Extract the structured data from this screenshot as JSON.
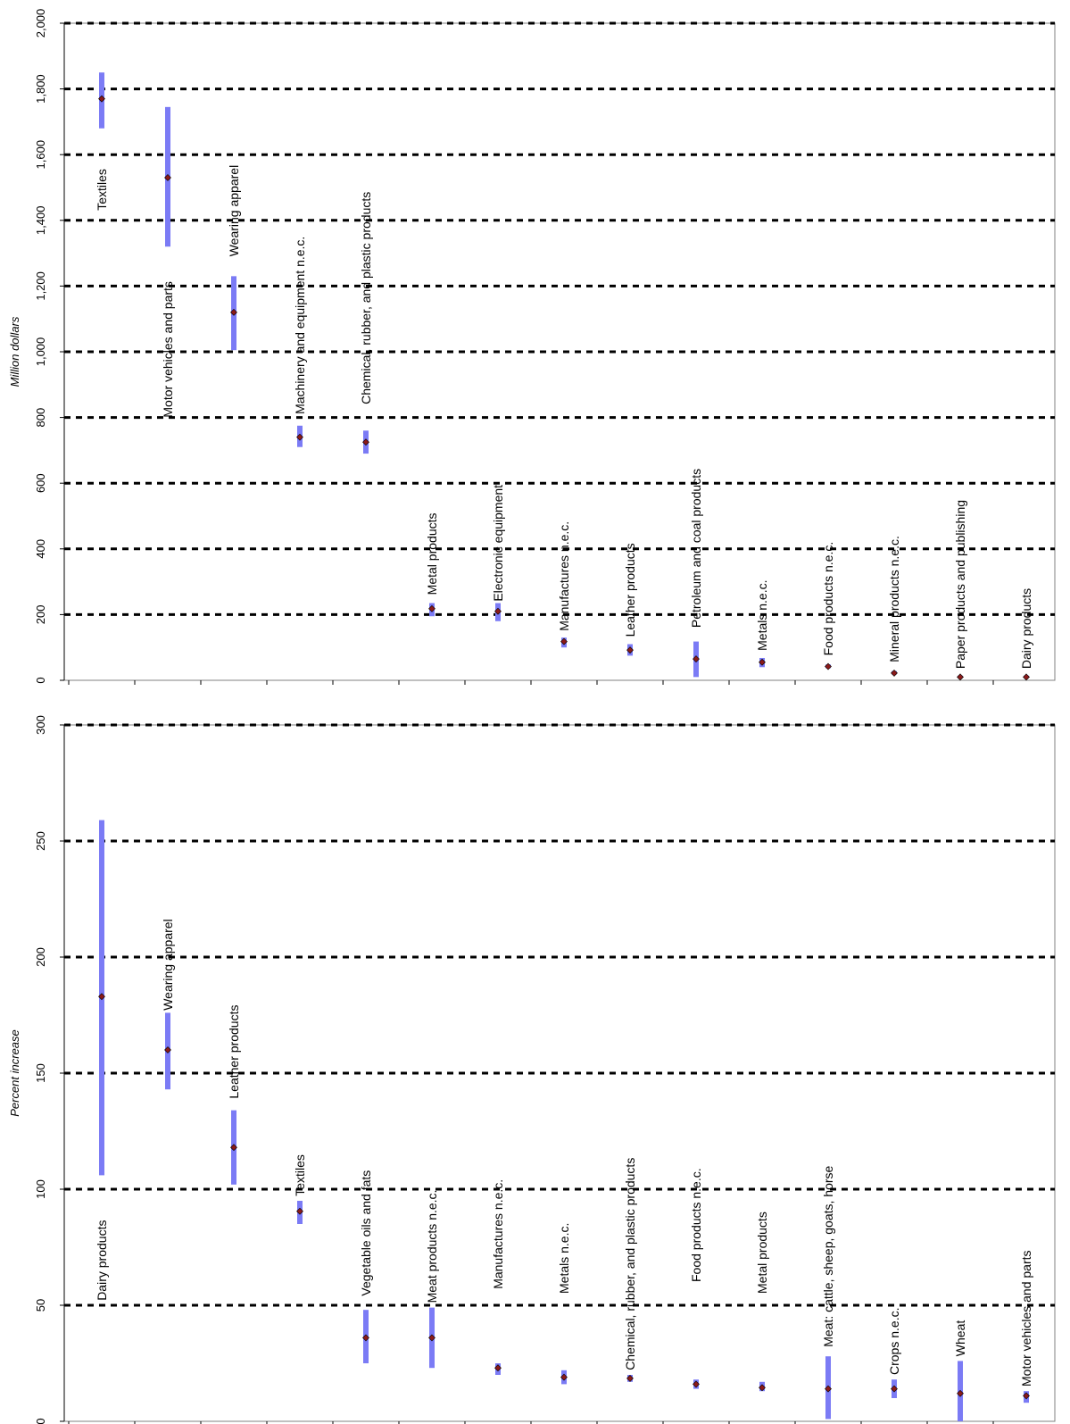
{
  "chart_data": [
    {
      "type": "range",
      "ylabel": "Million dollars",
      "ylim": [
        0,
        2000
      ],
      "yticks": [
        0,
        200,
        400,
        600,
        800,
        1000,
        1200,
        1400,
        1600,
        1800,
        2000
      ],
      "ytick_labels": [
        "0",
        "200",
        "400",
        "600",
        "800",
        "1,000",
        "1,200",
        "1,400",
        "1,600",
        "1,800",
        "2,000"
      ],
      "grid": "dotted horizontal",
      "colors": {
        "range": "#7b7bf5",
        "point": "#8b1a1a",
        "grid": "#000000"
      },
      "categories": [
        "Textiles",
        "Motor vehicles and parts",
        "Wearing apparel",
        "Machinery and equipment n.e.c.",
        "Chemical, rubber, and plastic products",
        "Metal products",
        "Electronic equipment",
        "Manufactures n.e.c.",
        "Leather products",
        "Petroleum and coal products",
        "Metals n.e.c.",
        "Food products n.e.c.",
        "Mineral products n.e.c.",
        "Paper products and publishing",
        "Dairy products"
      ],
      "values": [
        1770,
        1530,
        1120,
        740,
        725,
        218,
        210,
        118,
        92,
        65,
        55,
        42,
        22,
        10,
        10
      ],
      "low": [
        1680,
        1320,
        1005,
        710,
        690,
        195,
        180,
        100,
        75,
        10,
        40,
        37,
        18,
        7,
        7
      ],
      "high": [
        1850,
        1745,
        1230,
        775,
        760,
        235,
        235,
        130,
        110,
        118,
        68,
        48,
        28,
        14,
        14
      ],
      "label_anchor": [
        1430,
        800,
        1290,
        810,
        840,
        260,
        240,
        150,
        132,
        160,
        90,
        75,
        55,
        35,
        35
      ]
    },
    {
      "type": "range",
      "ylabel": "Percent increase",
      "ylim": [
        0,
        300
      ],
      "yticks": [
        0,
        50,
        100,
        150,
        200,
        250,
        300
      ],
      "ytick_labels": [
        "0",
        "50",
        "100",
        "150",
        "200",
        "250",
        "300"
      ],
      "grid": "dotted horizontal",
      "colors": {
        "range": "#7b7bf5",
        "point": "#8b1a1a",
        "grid": "#000000"
      },
      "categories": [
        "Dairy products",
        "Wearing apparel",
        "Leather products",
        "Textiles",
        "Vegetable oils and fats",
        "Meat products n.e.c.",
        "Manufactures n.e.c.",
        "Metals n.e.c.",
        "Chemical, rubber, and plastic products",
        "Food products n.e.c.",
        "Metal products",
        "Meat: cattle, sheep, goats, horse",
        "Crops n.e.c.",
        "Wheat",
        "Motor vehicles and parts"
      ],
      "values": [
        183,
        160,
        118,
        90.5,
        36,
        36,
        23,
        19,
        18.5,
        16,
        14.5,
        14,
        14,
        12,
        11
      ],
      "low": [
        106,
        143,
        102,
        85,
        25,
        23,
        20,
        16,
        17,
        14,
        13,
        1,
        10,
        0,
        8
      ],
      "high": [
        259,
        176,
        134,
        95,
        48,
        49,
        25,
        22,
        20,
        18,
        17,
        28,
        18,
        26,
        13
      ],
      "label_anchor": [
        52,
        177,
        139,
        97,
        54,
        51,
        57,
        55,
        22,
        60,
        55,
        32,
        20,
        28,
        15
      ]
    }
  ]
}
